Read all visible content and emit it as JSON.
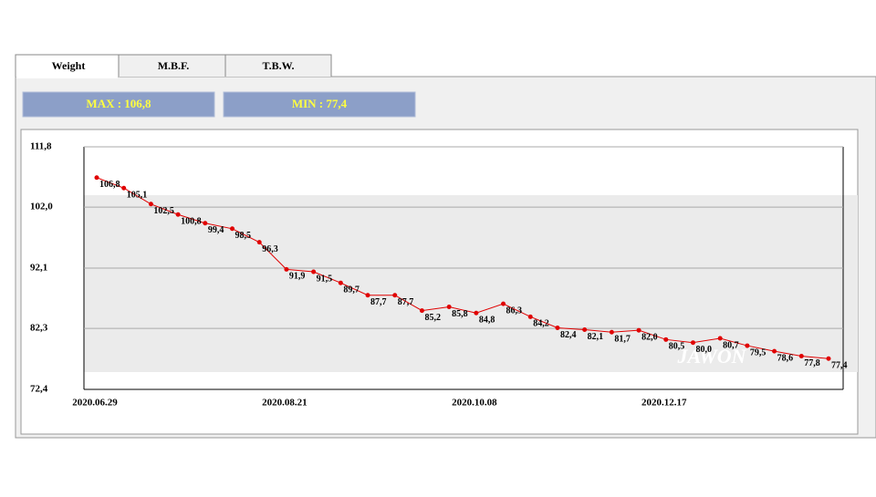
{
  "tabs": [
    "Weight",
    "M.B.F.",
    "T.B.W."
  ],
  "stats": {
    "max": "MAX : 106,8",
    "min": "MIN : 77,4"
  },
  "watermark": "JAWON",
  "chart_data": {
    "type": "line",
    "categories": [
      "2020.06.29",
      null,
      null,
      null,
      null,
      null,
      null,
      "2020.08.21",
      null,
      null,
      null,
      null,
      null,
      null,
      "2020.10.08",
      null,
      null,
      null,
      null,
      null,
      null,
      "2020.12.17",
      null,
      null,
      null,
      null,
      null,
      null
    ],
    "values": [
      106.8,
      105.1,
      102.5,
      100.8,
      99.4,
      98.5,
      96.3,
      91.9,
      91.5,
      89.7,
      87.7,
      87.7,
      85.2,
      85.8,
      84.8,
      86.3,
      84.2,
      82.4,
      82.1,
      81.7,
      82.0,
      80.5,
      80.0,
      80.7,
      79.5,
      78.6,
      77.8,
      77.4
    ],
    "value_labels": [
      "106,8",
      "105,1",
      "102,5",
      "100,8",
      "99,4",
      "98,5",
      "96,3",
      "91,9",
      "91,5",
      "89,7",
      "87,7",
      "87,7",
      "85,2",
      "85,8",
      "84,8",
      "86,3",
      "84,2",
      "82,4",
      "82,1",
      "81,7",
      "82,0",
      "80,5",
      "80,0",
      "80,7",
      "79,5",
      "78,6",
      "77,8",
      "77,4"
    ],
    "color": "#e00000",
    "ylim": [
      72.4,
      111.8
    ],
    "yticks": [
      {
        "value": 72.4,
        "label": "72,4"
      },
      {
        "value": 82.3,
        "label": "82,3"
      },
      {
        "value": 92.1,
        "label": "92,1"
      },
      {
        "value": 102.0,
        "label": "102,0"
      },
      {
        "value": 111.8,
        "label": "111,8"
      }
    ],
    "grid": true
  }
}
